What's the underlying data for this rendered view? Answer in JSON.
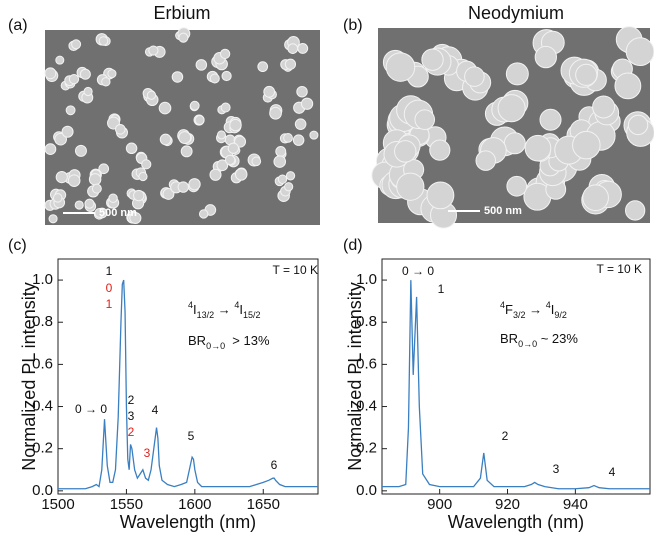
{
  "panels": [
    {
      "label": "(a)",
      "title": "Erbium",
      "scale_bar": "500 nm"
    },
    {
      "label": "(b)",
      "title": "Neodymium",
      "scale_bar": "500 nm"
    }
  ],
  "chart_data": [
    {
      "type": "line",
      "label": "(c)",
      "x_label": "Wavelength (nm)",
      "y_label": "Normalized PL intensity",
      "xlim": [
        1500,
        1690
      ],
      "xticks": [
        1500,
        1550,
        1600,
        1650
      ],
      "ylim": [
        -0.015,
        1.1
      ],
      "yticks": [
        {
          "value": 0,
          "label": "0.0"
        },
        0.2,
        0.4,
        0.6,
        0.8,
        {
          "value": 1,
          "label": "1.0"
        }
      ],
      "color": "#3a7fc1",
      "x": [
        1500,
        1510,
        1520,
        1525,
        1528,
        1530,
        1532,
        1534,
        1536,
        1538,
        1540,
        1542,
        1544,
        1546,
        1547,
        1548,
        1549,
        1550,
        1551,
        1552,
        1553,
        1554,
        1556,
        1558,
        1560,
        1562,
        1564,
        1566,
        1568,
        1570,
        1572,
        1573,
        1574,
        1576,
        1578,
        1580,
        1585,
        1590,
        1594,
        1596,
        1598,
        1599,
        1600,
        1602,
        1605,
        1610,
        1620,
        1630,
        1640,
        1645,
        1650,
        1654,
        1657,
        1658,
        1659,
        1662,
        1666,
        1670,
        1680,
        1690
      ],
      "values": [
        0.01,
        0.01,
        0.01,
        0.02,
        0.03,
        0.02,
        0.1,
        0.34,
        0.12,
        0.04,
        0.04,
        0.1,
        0.35,
        0.8,
        0.98,
        1.0,
        0.85,
        0.4,
        0.15,
        0.1,
        0.22,
        0.2,
        0.1,
        0.06,
        0.08,
        0.1,
        0.06,
        0.05,
        0.1,
        0.2,
        0.3,
        0.25,
        0.12,
        0.05,
        0.04,
        0.03,
        0.02,
        0.03,
        0.04,
        0.1,
        0.16,
        0.15,
        0.1,
        0.04,
        0.02,
        0.02,
        0.02,
        0.02,
        0.02,
        0.03,
        0.04,
        0.05,
        0.06,
        0.06,
        0.05,
        0.03,
        0.02,
        0.02,
        0.02,
        0.02
      ],
      "annotations": [
        {
          "text": "1",
          "color": "#111111"
        },
        {
          "text": "0",
          "color": "#e0201a"
        },
        {
          "text": "1",
          "color": "#e0201a"
        },
        {
          "text": "0 → 0",
          "color": "#111111"
        },
        {
          "text": "2",
          "color": "#111111"
        },
        {
          "text": "3",
          "color": "#111111"
        },
        {
          "text": "2",
          "color": "#e0201a"
        },
        {
          "text": "3",
          "color": "#e0201a"
        },
        {
          "text": "4",
          "color": "#111111"
        },
        {
          "text": "5",
          "color": "#111111"
        },
        {
          "text": "6",
          "color": "#111111"
        },
        {
          "text": "T = 10 K",
          "color": "#111111"
        }
      ],
      "transition": [
        "4",
        "I",
        "13/2",
        " → ",
        "4",
        "I",
        "15/2"
      ],
      "branching": [
        "BR",
        "0→0",
        "  > 13%"
      ]
    },
    {
      "type": "line",
      "label": "(d)",
      "x_label": "Wavelength (nm)",
      "y_label": "Normalized PL intensity",
      "xlim": [
        883,
        962
      ],
      "xticks": [
        900,
        920,
        940
      ],
      "ylim": [
        -0.015,
        1.1
      ],
      "yticks": [
        {
          "value": 0,
          "label": "0.0"
        },
        0.2,
        0.4,
        0.6,
        0.8,
        {
          "value": 1,
          "label": "1.0"
        }
      ],
      "color": "#3a7fc1",
      "x": [
        883,
        888,
        890,
        890.8,
        891.5,
        892.2,
        893.2,
        894,
        895,
        897,
        900,
        905,
        910,
        912,
        913,
        914,
        916,
        920,
        925,
        927,
        928,
        929,
        931,
        935,
        940,
        944,
        945.5,
        947,
        950,
        955,
        962
      ],
      "values": [
        0.02,
        0.02,
        0.03,
        0.3,
        1.0,
        0.55,
        0.92,
        0.4,
        0.08,
        0.03,
        0.02,
        0.02,
        0.02,
        0.06,
        0.18,
        0.05,
        0.02,
        0.02,
        0.02,
        0.03,
        0.04,
        0.03,
        0.02,
        0.01,
        0.01,
        0.015,
        0.025,
        0.015,
        0.01,
        0.01,
        0.01
      ],
      "annotations": [
        {
          "text": "0 → 0",
          "color": "#111111"
        },
        {
          "text": "1",
          "color": "#111111"
        },
        {
          "text": "2",
          "color": "#111111"
        },
        {
          "text": "3",
          "color": "#111111"
        },
        {
          "text": "4",
          "color": "#111111"
        },
        {
          "text": "T = 10 K",
          "color": "#111111"
        }
      ],
      "transition": [
        "4",
        "F",
        "3/2",
        " → ",
        "4",
        "I",
        "9/2"
      ],
      "branching": [
        "BR",
        "0→0",
        " ~ 23%"
      ]
    }
  ]
}
